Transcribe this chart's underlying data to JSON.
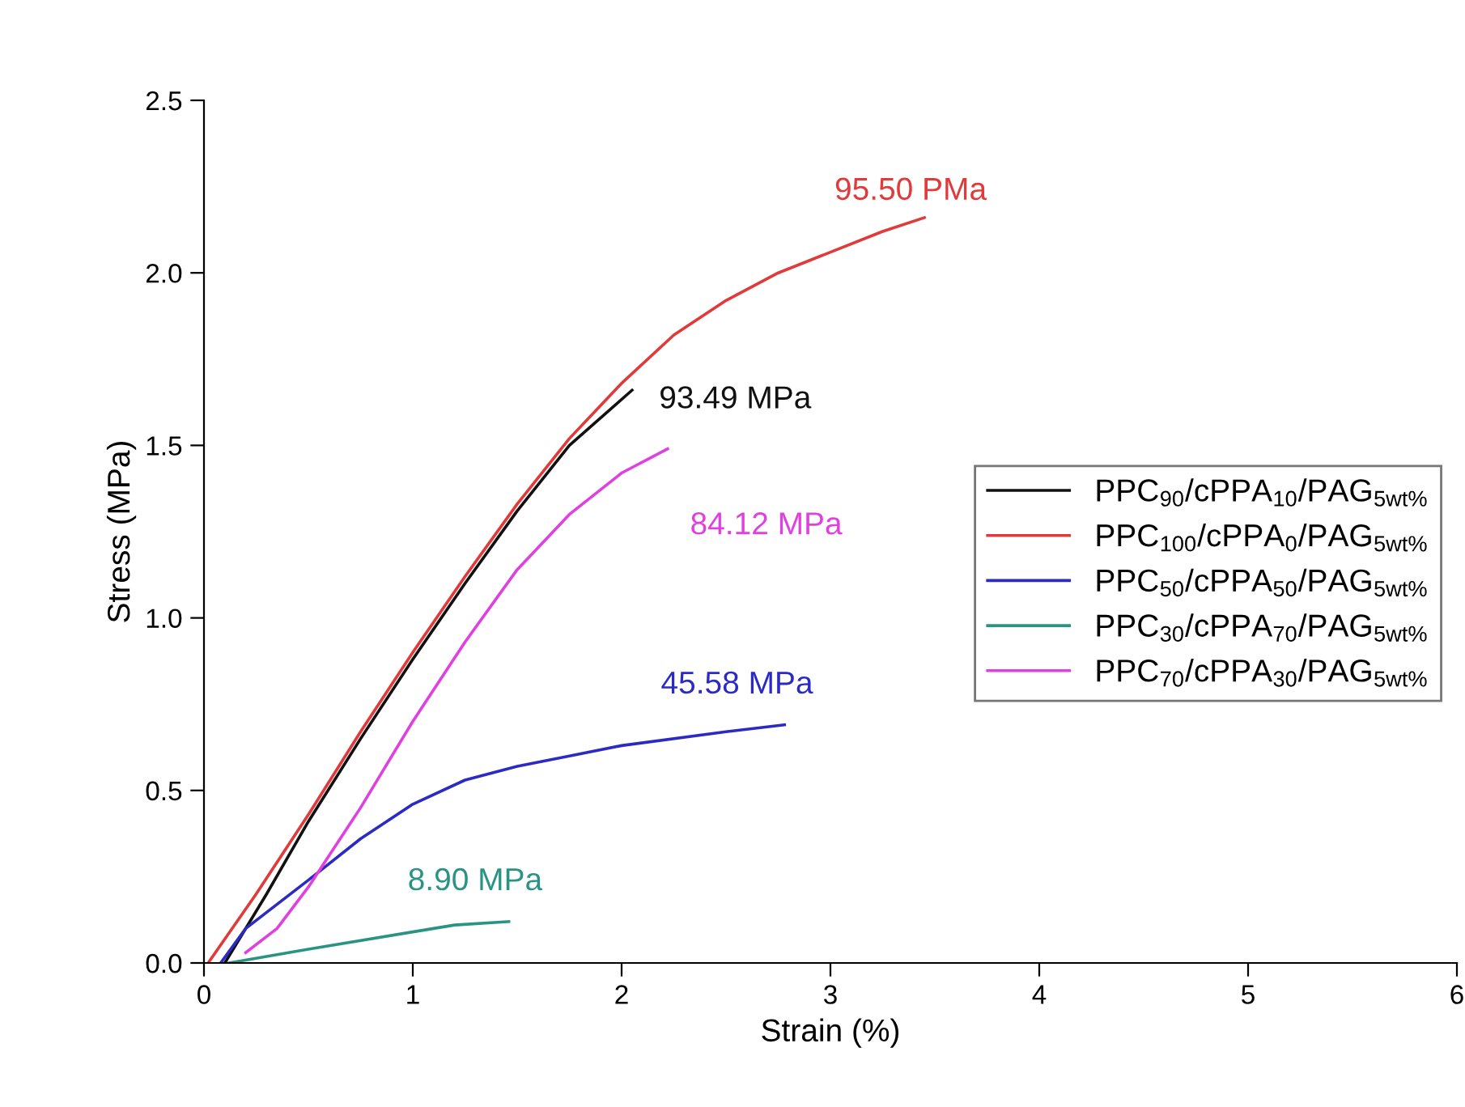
{
  "chart_data": {
    "type": "line",
    "xlabel": "Strain (%)",
    "ylabel": "Stress (MPa)",
    "xlim": [
      0,
      6
    ],
    "ylim": [
      0,
      2.5
    ],
    "xticks": [
      0,
      1,
      2,
      3,
      4,
      5,
      6
    ],
    "yticks": [
      {
        "value": 0,
        "label": "0.0"
      },
      {
        "value": 0.5,
        "label": "0.5"
      },
      {
        "value": 1,
        "label": "1.0"
      },
      {
        "value": 1.5,
        "label": "1.5"
      },
      {
        "value": 2,
        "label": "2.0"
      },
      {
        "value": 2.5,
        "label": "2.5"
      }
    ],
    "grid": false,
    "legend": "right",
    "marker": "none",
    "line_style": "solid",
    "series": [
      {
        "name": "PPC$_{90}$/cPPA$_{10}$/PAG$_{5wt%}$",
        "color": "#111111",
        "x": [
          0.1,
          0.3,
          0.5,
          0.75,
          1.0,
          1.25,
          1.5,
          1.75,
          2.05
        ],
        "values": [
          0,
          0.2,
          0.41,
          0.65,
          0.88,
          1.1,
          1.31,
          1.5,
          1.66
        ]
      },
      {
        "name": "PPC$_{100}$/cPPA$_{0}$/PAG$_{5wt%}$",
        "color": "#e03a3a",
        "x": [
          0.02,
          0.25,
          0.5,
          0.75,
          1.0,
          1.25,
          1.5,
          1.75,
          2.0,
          2.25,
          2.5,
          2.75,
          3.0,
          3.25,
          3.45
        ],
        "values": [
          0,
          0.2,
          0.43,
          0.67,
          0.9,
          1.12,
          1.33,
          1.52,
          1.68,
          1.82,
          1.92,
          2.0,
          2.06,
          2.12,
          2.16
        ]
      },
      {
        "name": "PPC$_{50}$/cPPA$_{50}$/PAG$_{5wt%}$",
        "color": "#2b2bc4",
        "x": [
          0.08,
          0.2,
          0.5,
          0.75,
          1.0,
          1.25,
          1.5,
          1.75,
          2.0,
          2.5,
          2.78
        ],
        "values": [
          0,
          0.1,
          0.24,
          0.36,
          0.46,
          0.53,
          0.57,
          0.6,
          0.63,
          0.67,
          0.69
        ]
      },
      {
        "name": "PPC$_{30}$/cPPA$_{70}$/PAG$_{5wt%}$",
        "color": "#2a9484",
        "x": [
          0.12,
          0.5,
          1.0,
          1.2,
          1.46
        ],
        "values": [
          0,
          0.04,
          0.09,
          0.11,
          0.12
        ]
      },
      {
        "name": "PPC$_{70}$/cPPA$_{30}$/PAG$_{5wt%}$",
        "color": "#e040e0",
        "x": [
          0.2,
          0.35,
          0.5,
          0.75,
          1.0,
          1.25,
          1.5,
          1.75,
          2.0,
          2.22
        ],
        "values": [
          0.03,
          0.1,
          0.22,
          0.45,
          0.7,
          0.93,
          1.14,
          1.3,
          1.42,
          1.49
        ]
      }
    ],
    "annotations": [
      {
        "text": "95.50 PMa",
        "x": 3.45,
        "y": 2.16
      },
      {
        "text": "93.49 MPa",
        "x": 2.05,
        "y": 1.66
      },
      {
        "text": "84.12 MPa",
        "x": 2.22,
        "y": 1.49
      },
      {
        "text": "45.58 MPa",
        "x": 2.78,
        "y": 0.69
      },
      {
        "text": "8.90 MPa",
        "x": 1.46,
        "y": 0.12
      }
    ]
  }
}
